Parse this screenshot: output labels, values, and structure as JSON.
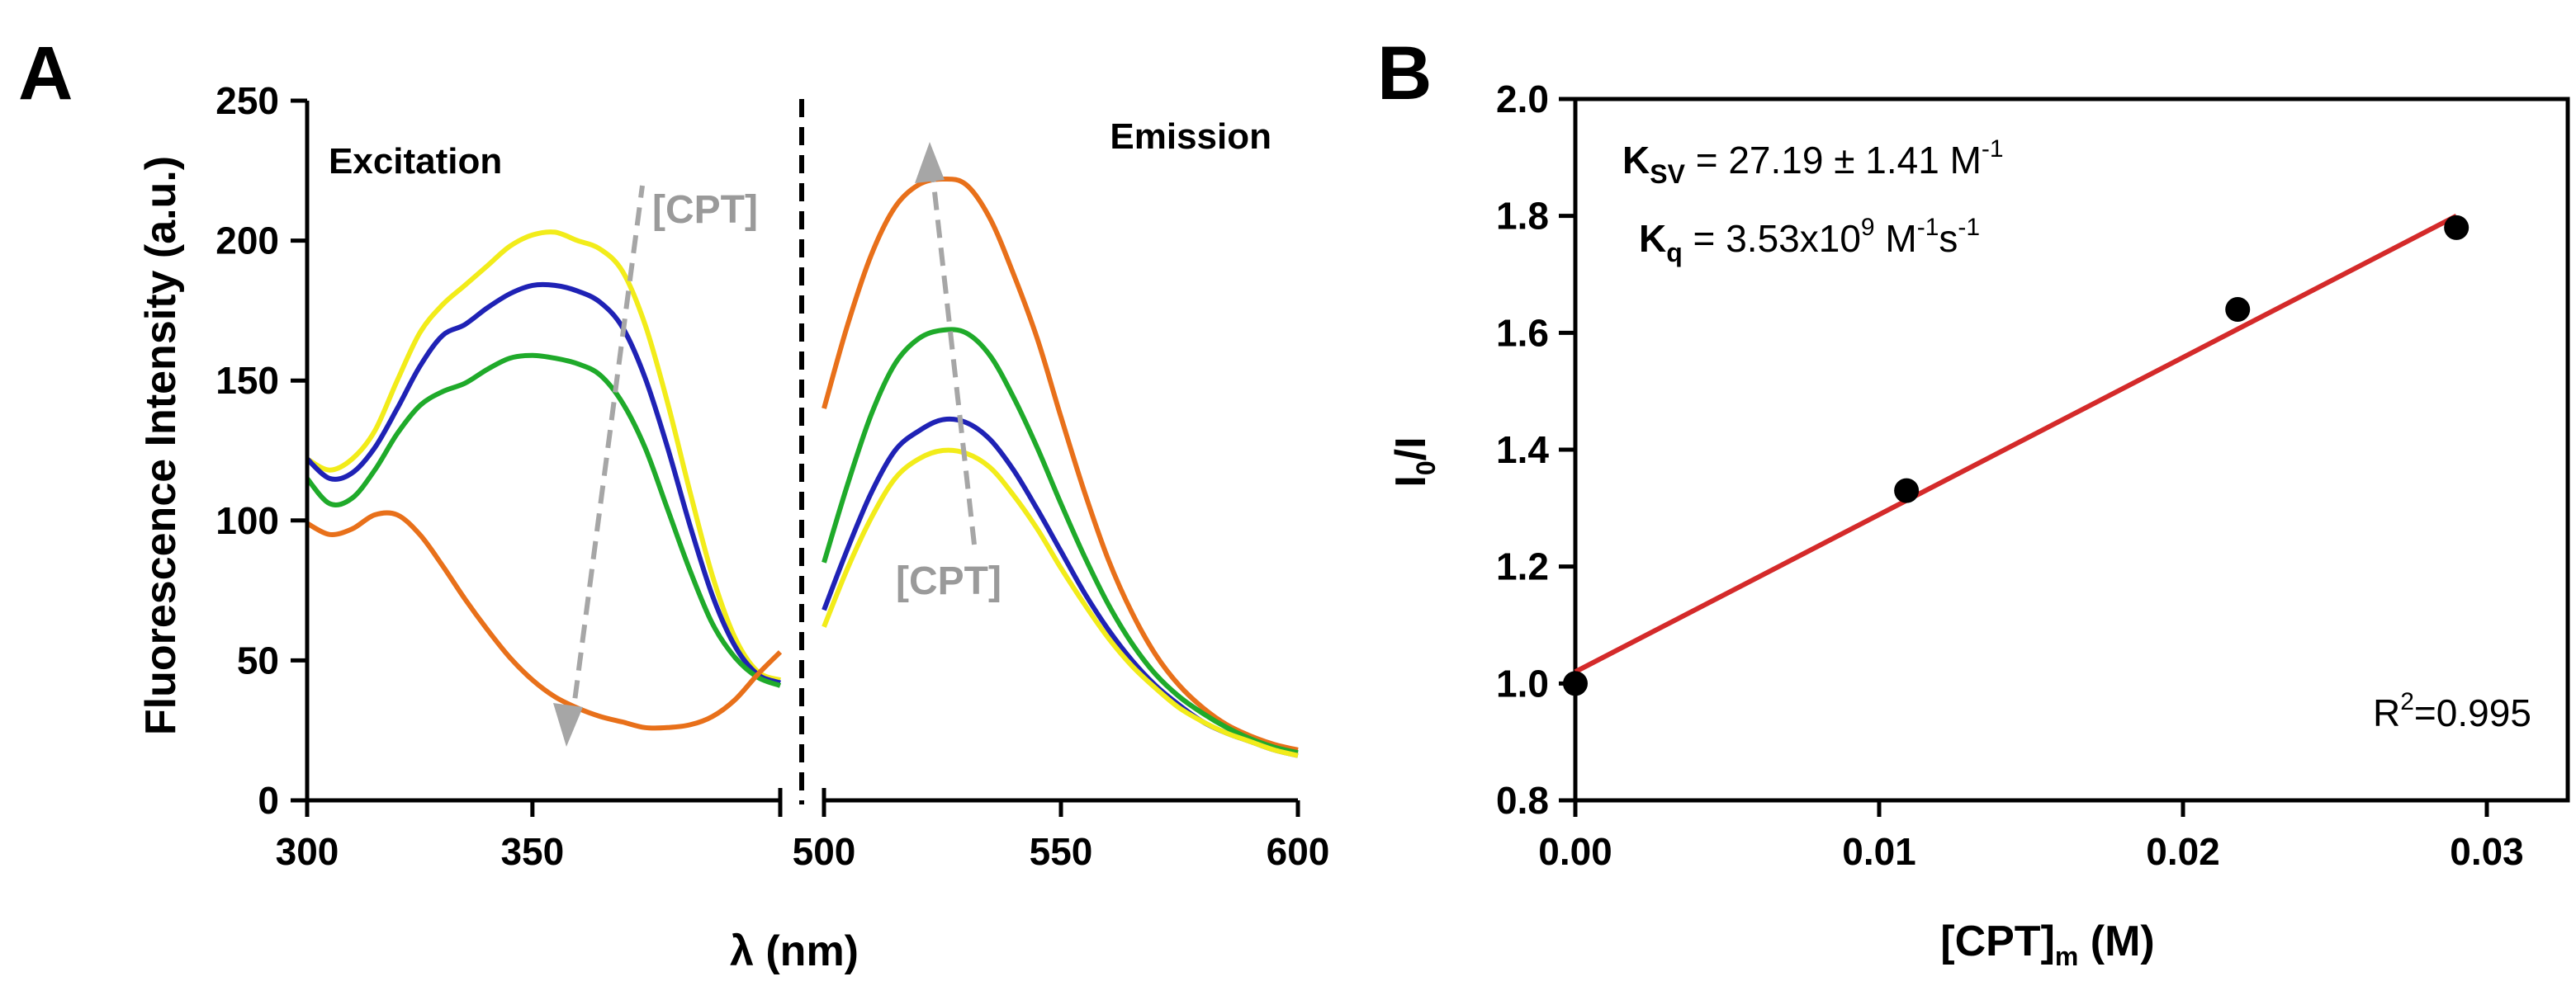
{
  "panels": {
    "a": {
      "letter": "A",
      "ylabel": "Fluorescence Intensity (a.u.)",
      "xlabel": "λ (nm)",
      "excitation_label": "Excitation",
      "emission_label": "Emission",
      "arrow_label_excitation": "[CPT]",
      "arrow_label_emission": "[CPT]"
    },
    "b": {
      "letter": "B",
      "ylabel_main": "I",
      "ylabel_sub": "0",
      "ylabel_tail": "/I",
      "xlabel_main": "[CPT]",
      "xlabel_sub": "m",
      "xlabel_tail": " (M)",
      "ksv": {
        "k": "K",
        "sub": "SV",
        "value": " = 27.19 ± 1.41 M",
        "sup": "-1"
      },
      "kq": {
        "k": "K",
        "sub": "q",
        "value": " = 3.53x10",
        "sup1": "9",
        "unit": " M",
        "sup2": "-1",
        "unit2": "s",
        "sup3": "-1"
      },
      "r2": {
        "r": "R",
        "sup": "2",
        "value": "=0.995"
      }
    }
  },
  "colors": {
    "yellow": "#f2ec1a",
    "blue": "#1f22b5",
    "green": "#1faa2a",
    "orange": "#e8701a",
    "fit_line": "#d42a2a",
    "arrow": "#a6a6a6"
  },
  "chart_data": [
    {
      "type": "line",
      "panel": "A (excitation)",
      "xlabel": "λ (nm)",
      "ylabel": "Fluorescence Intensity (a.u.)",
      "xlim": [
        300,
        405
      ],
      "ylim": [
        0,
        250
      ],
      "x_ticks": [
        300,
        350
      ],
      "y_ticks": [
        0,
        50,
        100,
        150,
        200,
        250
      ],
      "x": [
        300,
        305,
        310,
        315,
        320,
        325,
        330,
        335,
        340,
        345,
        350,
        355,
        360,
        365,
        370,
        375,
        380,
        385,
        390,
        395,
        400,
        405
      ],
      "series": [
        {
          "color": "yellow",
          "values": [
            122,
            118,
            122,
            132,
            150,
            167,
            177,
            184,
            191,
            198,
            202,
            203,
            200,
            197,
            189,
            170,
            142,
            110,
            80,
            58,
            46,
            43
          ]
        },
        {
          "color": "blue",
          "values": [
            122,
            115,
            117,
            126,
            140,
            155,
            166,
            170,
            176,
            181,
            184,
            184,
            182,
            178,
            169,
            151,
            126,
            98,
            73,
            55,
            45,
            42
          ]
        },
        {
          "color": "green",
          "values": [
            115,
            106,
            108,
            118,
            131,
            141,
            146,
            149,
            154,
            158,
            159,
            158,
            156,
            152,
            142,
            126,
            104,
            82,
            63,
            51,
            44,
            41
          ]
        },
        {
          "color": "orange",
          "values": [
            99,
            95,
            97,
            102,
            102,
            95,
            84,
            72,
            61,
            51,
            43,
            37,
            33,
            30,
            28,
            26,
            26,
            27,
            30,
            36,
            45,
            53
          ]
        }
      ],
      "annotation": "[CPT]"
    },
    {
      "type": "line",
      "panel": "A (emission)",
      "xlabel": "λ (nm)",
      "xlim": [
        500,
        600
      ],
      "ylim": [
        0,
        250
      ],
      "x_ticks": [
        500,
        550,
        600
      ],
      "x": [
        500,
        505,
        510,
        515,
        520,
        525,
        530,
        535,
        540,
        545,
        550,
        555,
        560,
        565,
        570,
        575,
        580,
        585,
        590,
        595,
        600
      ],
      "series": [
        {
          "color": "orange",
          "values": [
            140,
            170,
            195,
            212,
            220,
            222,
            220,
            208,
            188,
            165,
            137,
            110,
            86,
            67,
            52,
            41,
            33,
            27,
            23,
            20,
            18
          ]
        },
        {
          "color": "green",
          "values": [
            85,
            113,
            138,
            156,
            165,
            168,
            167,
            159,
            144,
            126,
            106,
            87,
            70,
            56,
            45,
            37,
            31,
            26,
            22,
            19,
            17
          ]
        },
        {
          "color": "blue",
          "values": [
            68,
            90,
            110,
            125,
            132,
            136,
            135,
            129,
            118,
            104,
            89,
            74,
            61,
            50,
            41,
            34,
            28,
            24,
            21,
            18,
            16
          ]
        },
        {
          "color": "yellow",
          "values": [
            62,
            83,
            101,
            115,
            122,
            125,
            124,
            119,
            109,
            97,
            83,
            70,
            58,
            48,
            40,
            33,
            28,
            24,
            21,
            18,
            16
          ]
        }
      ],
      "annotation": "[CPT]"
    },
    {
      "type": "scatter",
      "panel": "B",
      "xlabel": "[CPT]m (M)",
      "ylabel": "I0/I",
      "xlim": [
        0,
        0.03
      ],
      "ylim": [
        0.8,
        2.0
      ],
      "x_ticks": [
        "0.00",
        "0.01",
        "0.02",
        "0.03"
      ],
      "y_ticks": [
        "0.8",
        "1.0",
        "1.2",
        "1.4",
        "1.6",
        "1.8",
        "2.0"
      ],
      "points": [
        {
          "x": 0.0,
          "y": 1.0
        },
        {
          "x": 0.0109,
          "y": 1.33
        },
        {
          "x": 0.0218,
          "y": 1.64
        },
        {
          "x": 0.029,
          "y": 1.78
        }
      ],
      "fit": {
        "x": [
          0.0,
          0.029
        ],
        "y": [
          1.02,
          1.8
        ]
      },
      "annotations": [
        "KSV = 27.19 ± 1.41 M-1",
        "Kq = 3.53x109 M-1s-1",
        "R2=0.995"
      ]
    }
  ]
}
